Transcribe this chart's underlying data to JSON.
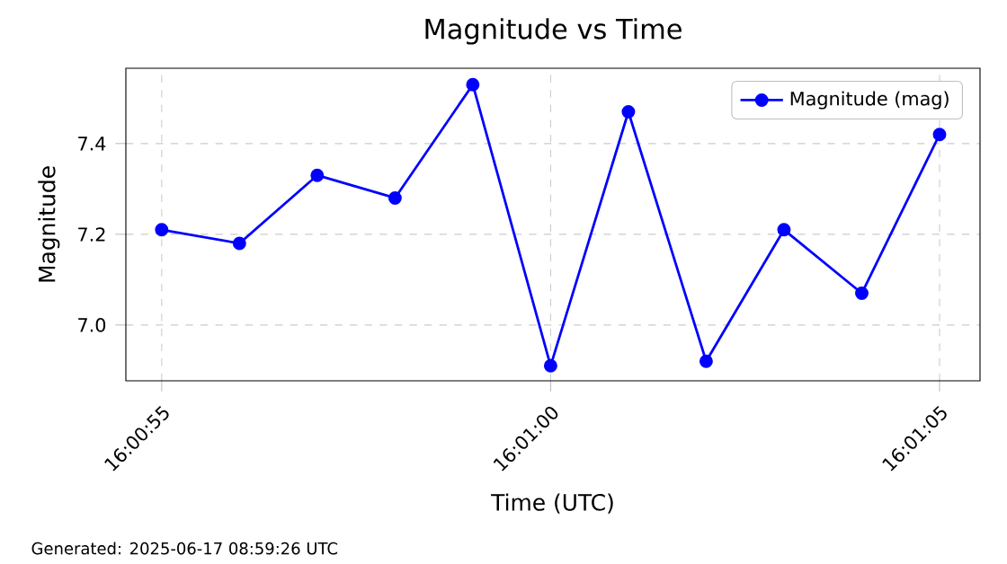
{
  "chart_data": {
    "type": "line",
    "title": "Magnitude vs Time",
    "xlabel": "Time (UTC)",
    "ylabel": "Magnitude",
    "x": [
      16.0152778,
      16.0155556,
      16.0158333,
      16.0161111,
      16.0163889,
      16.0166667,
      16.0169444,
      16.0172222,
      16.0175,
      16.0177778,
      16.0180556
    ],
    "series": [
      {
        "name": "Magnitude (mag)",
        "color": "#0000ff",
        "values": [
          7.21,
          7.18,
          7.33,
          7.28,
          7.53,
          6.91,
          7.47,
          6.92,
          7.21,
          7.07,
          7.42
        ]
      }
    ],
    "xlim": [
      16.01515,
      16.0182
    ],
    "ylim": [
      6.877,
      7.566
    ],
    "xticks": [
      {
        "value": 16.0152778,
        "label": "16:00:55"
      },
      {
        "value": 16.0166667,
        "label": "16:01:00"
      },
      {
        "value": 16.0180556,
        "label": "16:01:05"
      }
    ],
    "yticks": [
      {
        "value": 7.0,
        "label": "7.0"
      },
      {
        "value": 7.2,
        "label": "7.2"
      },
      {
        "value": 7.4,
        "label": "7.4"
      }
    ],
    "grid": true,
    "legend": "top right",
    "marker": "circle",
    "line_style": "solid",
    "annotations": [
      "Generated: 2025-06-17 08:59:26 UTC"
    ]
  }
}
